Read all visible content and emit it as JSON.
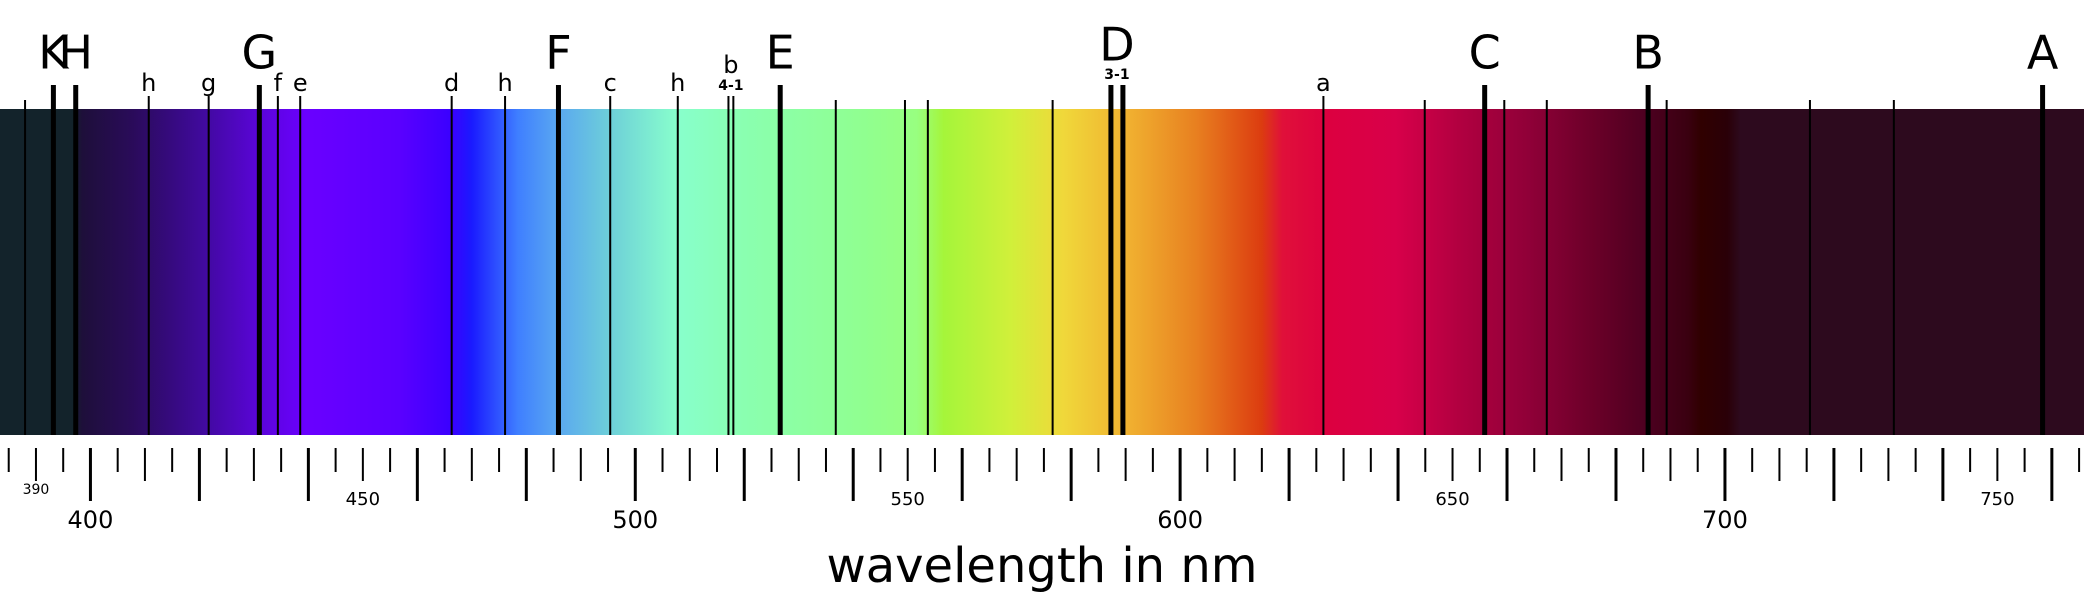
{
  "chart_data": {
    "type": "spectrum",
    "xlabel": "wavelength in nm",
    "xlim": [
      383.4,
      765.9
    ],
    "xticks": [
      390,
      400,
      450,
      500,
      550,
      600,
      650,
      700,
      750
    ],
    "minor_xticks": [
      385,
      390,
      395,
      400,
      405,
      410,
      415,
      420,
      425,
      430,
      435,
      440,
      445,
      450,
      455,
      460,
      465,
      470,
      475,
      480,
      485,
      490,
      495,
      500,
      505,
      510,
      515,
      520,
      525,
      530,
      535,
      540,
      545,
      550,
      555,
      560,
      565,
      570,
      575,
      580,
      585,
      590,
      595,
      600,
      605,
      610,
      615,
      620,
      625,
      630,
      635,
      640,
      645,
      650,
      655,
      660,
      665,
      670,
      675,
      680,
      685,
      690,
      695,
      700,
      705,
      710,
      715,
      720,
      725,
      730,
      735,
      740,
      745,
      750,
      755,
      760,
      765
    ],
    "line_color": "#000000",
    "lines": [
      {
        "wavelengths": [
          388.0
        ]
      },
      {
        "label": "K",
        "wavelengths": [
          393.2
        ],
        "heavy": true
      },
      {
        "label": "H",
        "wavelengths": [
          397.3
        ],
        "heavy": true
      },
      {
        "label": "h",
        "wavelengths": [
          410.7
        ]
      },
      {
        "label": "g",
        "wavelengths": [
          421.7
        ]
      },
      {
        "label": "G",
        "wavelengths": [
          431.0
        ],
        "heavy": true
      },
      {
        "label": "f",
        "wavelengths": [
          434.4
        ]
      },
      {
        "label": "e",
        "wavelengths": [
          438.5
        ]
      },
      {
        "label": "d",
        "wavelengths": [
          466.3
        ]
      },
      {
        "label": "h",
        "wavelengths": [
          476.1
        ]
      },
      {
        "label": "F",
        "wavelengths": [
          485.9
        ],
        "heavy": true
      },
      {
        "label": "c",
        "wavelengths": [
          495.4
        ]
      },
      {
        "label": "h",
        "wavelengths": [
          507.8
        ]
      },
      {
        "label": "b",
        "sublabel": "4-1",
        "wavelengths": [
          517.1,
          518.0
        ]
      },
      {
        "label": "E",
        "wavelengths": [
          526.6
        ],
        "heavy": true
      },
      {
        "wavelengths": [
          536.8
        ]
      },
      {
        "wavelengths": [
          549.5
        ]
      },
      {
        "wavelengths": [
          553.7
        ]
      },
      {
        "wavelengths": [
          576.6
        ]
      },
      {
        "label": "D",
        "sublabel": "3-1",
        "wavelengths": [
          587.3,
          589.5
        ],
        "heavy": true
      },
      {
        "label": "a",
        "wavelengths": [
          626.3
        ]
      },
      {
        "wavelengths": [
          644.9
        ]
      },
      {
        "label": "C",
        "wavelengths": [
          655.9
        ],
        "heavy": true
      },
      {
        "wavelengths": [
          659.5
        ]
      },
      {
        "wavelengths": [
          667.3
        ]
      },
      {
        "label": "B",
        "wavelengths": [
          685.9
        ],
        "heavy": true
      },
      {
        "wavelengths": [
          689.3
        ]
      },
      {
        "wavelengths": [
          715.6
        ]
      },
      {
        "wavelengths": [
          731.0
        ]
      },
      {
        "label": "A",
        "wavelengths": [
          758.3
        ],
        "heavy": true
      }
    ],
    "spectrum_colors": [
      {
        "at": 383.4,
        "color": "#13232b"
      },
      {
        "at": 396.8,
        "color": "#13232b"
      },
      {
        "at": 398.5,
        "color": "#1e0f3a"
      },
      {
        "at": 407.8,
        "color": "#2a0b5a"
      },
      {
        "at": 420.0,
        "color": "#3f0a9a"
      },
      {
        "at": 431.0,
        "color": "#5a05d8"
      },
      {
        "at": 439.5,
        "color": "#6a00ff"
      },
      {
        "at": 456.6,
        "color": "#5a00ff"
      },
      {
        "at": 466.3,
        "color": "#3a00ff"
      },
      {
        "at": 470.0,
        "color": "#1a1aff"
      },
      {
        "at": 478.5,
        "color": "#3f7fff"
      },
      {
        "at": 485.9,
        "color": "#5aa8f0"
      },
      {
        "at": 495.6,
        "color": "#6ed0d8"
      },
      {
        "at": 507.8,
        "color": "#88ffcc"
      },
      {
        "at": 520.0,
        "color": "#8affb0"
      },
      {
        "at": 542.0,
        "color": "#90ff90"
      },
      {
        "at": 551.7,
        "color": "#98ff80"
      },
      {
        "at": 556.6,
        "color": "#a5f53a"
      },
      {
        "at": 568.8,
        "color": "#d0f03a"
      },
      {
        "at": 578.5,
        "color": "#f0d83a"
      },
      {
        "at": 590.7,
        "color": "#f0b030"
      },
      {
        "at": 602.9,
        "color": "#e88020"
      },
      {
        "at": 615.0,
        "color": "#dc3c10"
      },
      {
        "at": 618.8,
        "color": "#e0103a"
      },
      {
        "at": 627.3,
        "color": "#dc0040"
      },
      {
        "at": 639.5,
        "color": "#d8004a"
      },
      {
        "at": 651.7,
        "color": "#b00040"
      },
      {
        "at": 663.9,
        "color": "#900038"
      },
      {
        "at": 676.1,
        "color": "#6a0028"
      },
      {
        "at": 685.9,
        "color": "#4c0020"
      },
      {
        "at": 693.2,
        "color": "#3a0010"
      },
      {
        "at": 695.6,
        "color": "#300000"
      },
      {
        "at": 700.5,
        "color": "#2a0008"
      },
      {
        "at": 702.9,
        "color": "#2d0a1e"
      },
      {
        "at": 765.9,
        "color": "#2d0a1e"
      }
    ]
  }
}
